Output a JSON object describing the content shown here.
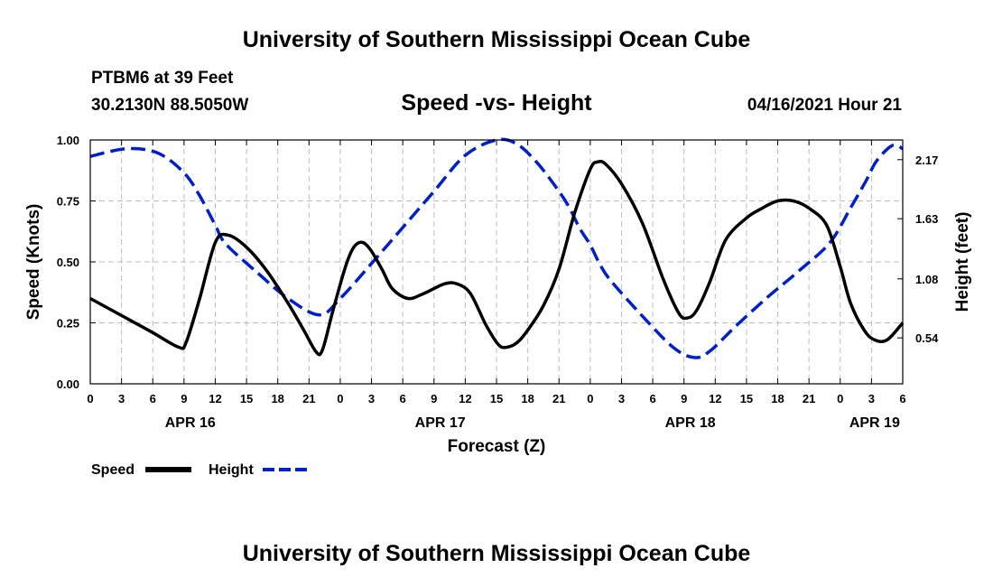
{
  "header": {
    "title_top": "University of Southern Mississippi Ocean Cube",
    "title_bottom": "University of Southern Mississippi Ocean Cube",
    "station": "PTBM6 at 39 Feet",
    "coords": "30.2130N  88.5050W",
    "chart_title": "Speed -vs- Height",
    "timestamp": "04/16/2021 Hour 21"
  },
  "chart_data": {
    "type": "line",
    "title": "Speed -vs- Height",
    "xlabel": "Forecast (Z)",
    "ylabel": "Speed (Knots)",
    "y2label": "Height (feet)",
    "x_unit": "hours since APR 16 00Z",
    "xlim": [
      0,
      78
    ],
    "ylim": [
      0,
      1
    ],
    "y2lim": [
      0.12,
      2.35
    ],
    "grid": true,
    "x_tick_hours": [
      0,
      3,
      6,
      9,
      12,
      15,
      18,
      21,
      24,
      27,
      30,
      33,
      36,
      39,
      42,
      45,
      48,
      51,
      54,
      57,
      60,
      63,
      66,
      69,
      72,
      75,
      78
    ],
    "x_tick_labels": [
      "0",
      "3",
      "6",
      "9",
      "12",
      "15",
      "18",
      "21",
      "0",
      "3",
      "6",
      "9",
      "12",
      "15",
      "18",
      "21",
      "0",
      "3",
      "6",
      "9",
      "12",
      "15",
      "18",
      "21",
      "0",
      "3",
      "6"
    ],
    "date_labels": [
      {
        "label": "APR 16",
        "hour": 9.6
      },
      {
        "label": "APR 17",
        "hour": 33.6
      },
      {
        "label": "APR 18",
        "hour": 57.6
      },
      {
        "label": "APR 19",
        "hour": 75.3
      }
    ],
    "y_ticks": [
      0.0,
      0.25,
      0.5,
      0.75,
      1.0
    ],
    "y_tick_labels": [
      "0.00",
      "0.25",
      "0.50",
      "0.75",
      "1.00"
    ],
    "y2_ticks": [
      0.54,
      1.08,
      1.63,
      2.17
    ],
    "y2_tick_labels": [
      "0.54",
      "1.08",
      "1.63",
      "2.17"
    ],
    "series": [
      {
        "name": "Speed",
        "axis": "left",
        "color": "#000000",
        "style": "solid",
        "x": [
          0,
          3,
          6,
          8.5,
          9.2,
          10.5,
          12,
          13.2,
          15,
          17,
          19,
          20.5,
          21.7,
          22.3,
          23.3,
          24.5,
          25.3,
          26.1,
          26.9,
          28,
          29,
          30.5,
          32,
          34,
          35.2,
          36.5,
          38,
          39.2,
          40,
          41,
          42,
          43.5,
          45,
          46.5,
          48,
          48.7,
          49.5,
          51,
          53,
          55,
          56.5,
          57.3,
          58.2,
          59.5,
          61,
          63,
          64.5,
          66,
          67.5,
          69,
          70.7,
          72,
          73,
          74.3,
          75.3,
          76.5,
          78
        ],
        "values": [
          0.35,
          0.28,
          0.21,
          0.15,
          0.17,
          0.35,
          0.58,
          0.61,
          0.56,
          0.46,
          0.33,
          0.22,
          0.13,
          0.14,
          0.3,
          0.48,
          0.56,
          0.58,
          0.55,
          0.47,
          0.39,
          0.35,
          0.37,
          0.41,
          0.41,
          0.37,
          0.24,
          0.16,
          0.15,
          0.17,
          0.22,
          0.32,
          0.47,
          0.7,
          0.88,
          0.91,
          0.9,
          0.82,
          0.66,
          0.43,
          0.29,
          0.27,
          0.3,
          0.42,
          0.59,
          0.68,
          0.72,
          0.75,
          0.75,
          0.72,
          0.65,
          0.48,
          0.33,
          0.22,
          0.18,
          0.18,
          0.25
        ]
      },
      {
        "name": "Height",
        "axis": "right",
        "color": "#0020cc",
        "style": "dashed",
        "x": [
          0,
          3.5,
          6.5,
          9,
          10.5,
          12,
          13,
          16,
          19,
          22,
          24,
          27,
          30,
          33,
          36,
          39,
          41,
          43,
          45,
          46,
          47,
          48,
          49,
          50,
          53,
          56,
          58,
          59.5,
          62,
          65,
          68,
          71,
          73,
          74.5,
          75.5,
          77,
          78
        ],
        "values": [
          2.2,
          2.27,
          2.23,
          2.05,
          1.84,
          1.57,
          1.4,
          1.14,
          0.9,
          0.75,
          0.9,
          1.22,
          1.55,
          1.88,
          2.21,
          2.35,
          2.31,
          2.13,
          1.88,
          1.73,
          1.54,
          1.39,
          1.2,
          1.06,
          0.74,
          0.45,
          0.36,
          0.42,
          0.65,
          0.91,
          1.15,
          1.41,
          1.73,
          1.98,
          2.16,
          2.3,
          2.27
        ]
      }
    ],
    "legend": {
      "placement": "bottom-left",
      "entries": [
        {
          "label": "Speed",
          "color": "#000000",
          "style": "solid"
        },
        {
          "label": "Height",
          "color": "#0020cc",
          "style": "dashed"
        }
      ]
    }
  }
}
